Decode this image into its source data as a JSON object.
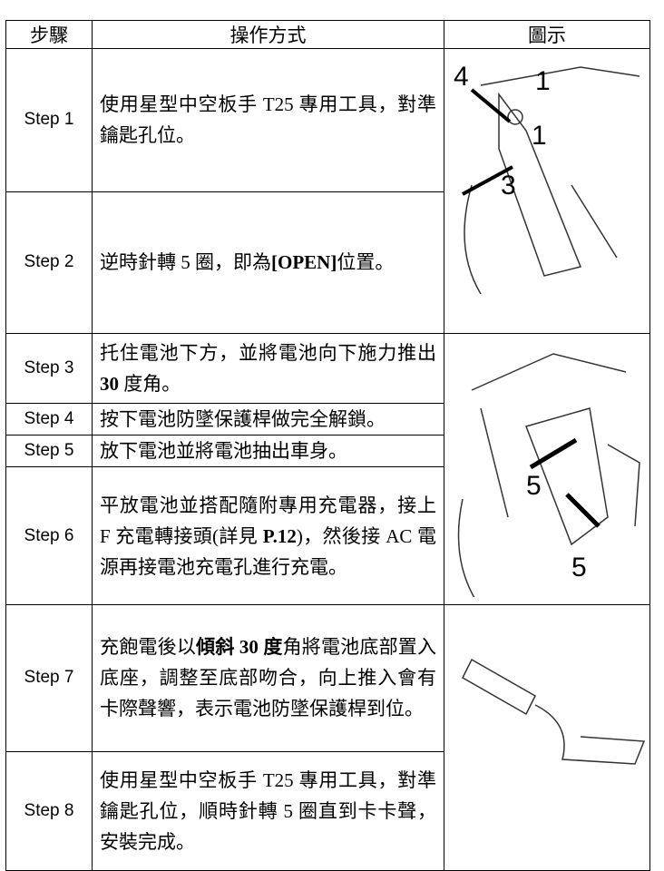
{
  "table": {
    "header": [
      "步驟",
      "操作方式",
      "圖示"
    ],
    "rows": [
      {
        "step": "Step 1",
        "text": [
          {
            "t": "使用星型中空板手 T25 專用工具，對準鑰匙孔位。",
            "b": false
          }
        ]
      },
      {
        "step": "Step 2",
        "text": [
          {
            "t": "逆時針轉 5 圈，即為",
            "b": false
          },
          {
            "t": "[OPEN]",
            "b": true
          },
          {
            "t": "位置。",
            "b": false
          }
        ]
      },
      {
        "step": "Step 3",
        "text": [
          {
            "t": "托住電池下方，並將電池向下施力推出 ",
            "b": false
          },
          {
            "t": "30",
            "b": true
          },
          {
            "t": " 度角。",
            "b": false
          }
        ]
      },
      {
        "step": "Step 4",
        "text": [
          {
            "t": "按下電池防墜保護桿做完全解鎖。",
            "b": false
          }
        ]
      },
      {
        "step": "Step 5",
        "text": [
          {
            "t": "放下電池並將電池抽出車身。",
            "b": false
          }
        ]
      },
      {
        "step": "Step 6",
        "text": [
          {
            "t": "平放電池並搭配隨附專用充電器，接上 F 充電轉接頭(詳見 ",
            "b": false
          },
          {
            "t": "P.12",
            "b": true
          },
          {
            "t": ")，然後接 AC 電源再接電池充電孔進行充電。",
            "b": false
          }
        ]
      },
      {
        "step": "Step 7",
        "text": [
          {
            "t": "充飽電後以",
            "b": false
          },
          {
            "t": "傾斜 30 度",
            "b": true
          },
          {
            "t": "角將電池底部置入底座，調整至底部吻合，向上推入會有卡際聲響，表示電池防墜保護桿到位。",
            "b": false
          }
        ]
      },
      {
        "step": "Step 8",
        "text": [
          {
            "t": "使用星型中空板手 T25 專用工具，對準鑰匙孔位，順時針轉 5 圈直到卡卡聲，安裝完成。",
            "b": false
          }
        ]
      }
    ]
  },
  "figures": {
    "fig1_labels": [
      "4",
      "1",
      "1",
      "3"
    ],
    "fig2_labels": [
      "5",
      "5"
    ]
  }
}
